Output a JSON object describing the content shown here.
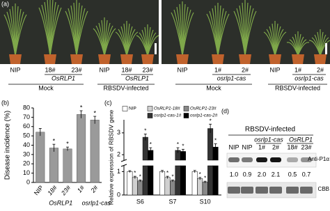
{
  "panel_a": {
    "label": "(a)",
    "photos": [
      {
        "lanes": [
          "NIP",
          "18#",
          "23#",
          "NIP",
          "18#",
          "23#"
        ],
        "line_label": "OsRLP1",
        "conditions": [
          "Mock",
          "RBSDV-infected"
        ]
      },
      {
        "lanes": [
          "NIP",
          "1#",
          "2#",
          "NIP",
          "1#",
          "2#"
        ],
        "line_label": "osrlp1-cas",
        "conditions": [
          "Mock",
          "RBSDV-infected"
        ]
      }
    ]
  },
  "chart_data": [
    {
      "type": "bar",
      "label": "(b)",
      "y_label": "Disease incidence (%)",
      "categories": [
        "NIP",
        "18#",
        "23#",
        "1#",
        "2#"
      ],
      "groups": [
        "OsRLP1",
        "osrlp1-cas"
      ],
      "values": [
        54,
        37,
        36,
        73,
        67
      ],
      "errors": [
        4,
        4,
        2,
        4,
        4
      ],
      "significant": [
        false,
        true,
        true,
        true,
        true
      ],
      "sig_label": "*",
      "color": "#9a9a9a",
      "ylim": [
        0,
        80
      ],
      "yticks": [
        0,
        10,
        20,
        30,
        40,
        50,
        60,
        70,
        80
      ]
    },
    {
      "type": "grouped-bar",
      "label": "(c)",
      "y_label": "Relative expression of RBSDV gene",
      "categories": [
        "S6",
        "S7",
        "S10"
      ],
      "sig_label": "*",
      "series": [
        {
          "name": "NIP",
          "color": "#ffffff",
          "values": [
            1.0,
            1.0,
            1.0
          ],
          "errors": [
            0.04,
            0.05,
            0.05
          ],
          "significant": false
        },
        {
          "name": "OsRLP1-18#",
          "color": "#d0d0d0",
          "values": [
            0.75,
            0.75,
            0.7
          ],
          "errors": [
            0.05,
            0.05,
            0.05
          ],
          "significant": true
        },
        {
          "name": "OsRLP1-23#",
          "color": "#888888",
          "values": [
            0.6,
            0.6,
            0.55
          ],
          "errors": [
            0.04,
            0.04,
            0.04
          ],
          "significant": true
        },
        {
          "name": "osrlp1-cas-1#",
          "color": "#333333",
          "values": [
            2.8,
            2.2,
            3.2
          ],
          "errors": [
            0.15,
            0.12,
            0.2
          ],
          "significant": true
        },
        {
          "name": "osrlp1-cas-2#",
          "color": "#000000",
          "values": [
            2.2,
            2.15,
            2.35
          ],
          "errors": [
            0.12,
            0.1,
            0.15
          ],
          "significant": true
        }
      ],
      "ylim": [
        0,
        3.6
      ],
      "axis_break": [
        1.25,
        1.75
      ],
      "yticks": [
        0,
        1,
        2,
        3
      ]
    }
  ],
  "panel_d": {
    "label": "(d)",
    "title": "RBSDV-infected",
    "lanes": [
      "NIP",
      "NIP",
      "1#",
      "2#",
      "18#",
      "23#"
    ],
    "groups": [
      "osrlp1-cas",
      "OsRLP1"
    ],
    "antibody": "Anti-P1α",
    "ratios": [
      "1.0",
      "0.9",
      "2.0",
      "2.1",
      "0.5",
      "0.7"
    ],
    "loading": "CBB"
  }
}
